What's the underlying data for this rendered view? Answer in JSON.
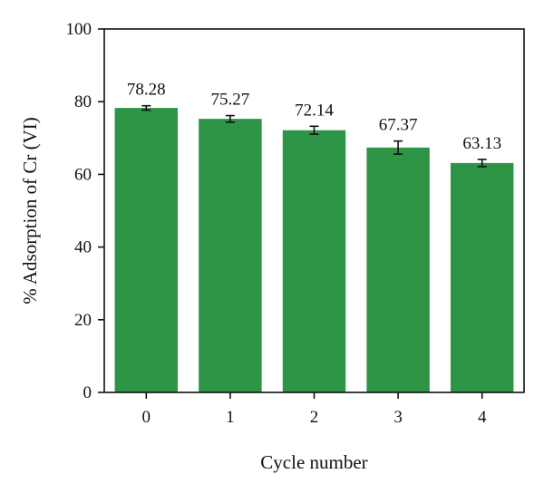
{
  "chart_data": {
    "type": "bar",
    "categories": [
      "0",
      "1",
      "2",
      "3",
      "4"
    ],
    "values": [
      78.28,
      75.27,
      72.14,
      67.37,
      63.13
    ],
    "error": [
      0.6,
      0.9,
      1.1,
      1.8,
      1.0
    ],
    "data_labels": [
      "78.28",
      "75.27",
      "72.14",
      "67.37",
      "63.13"
    ],
    "xlabel": "Cycle number",
    "ylabel": "% Adsorption of Cr (VI)",
    "ylim": [
      0,
      100
    ],
    "yticks": [
      0,
      20,
      40,
      60,
      80,
      100
    ],
    "grid": false,
    "legend": "none",
    "bar_color": "#2e9446"
  }
}
